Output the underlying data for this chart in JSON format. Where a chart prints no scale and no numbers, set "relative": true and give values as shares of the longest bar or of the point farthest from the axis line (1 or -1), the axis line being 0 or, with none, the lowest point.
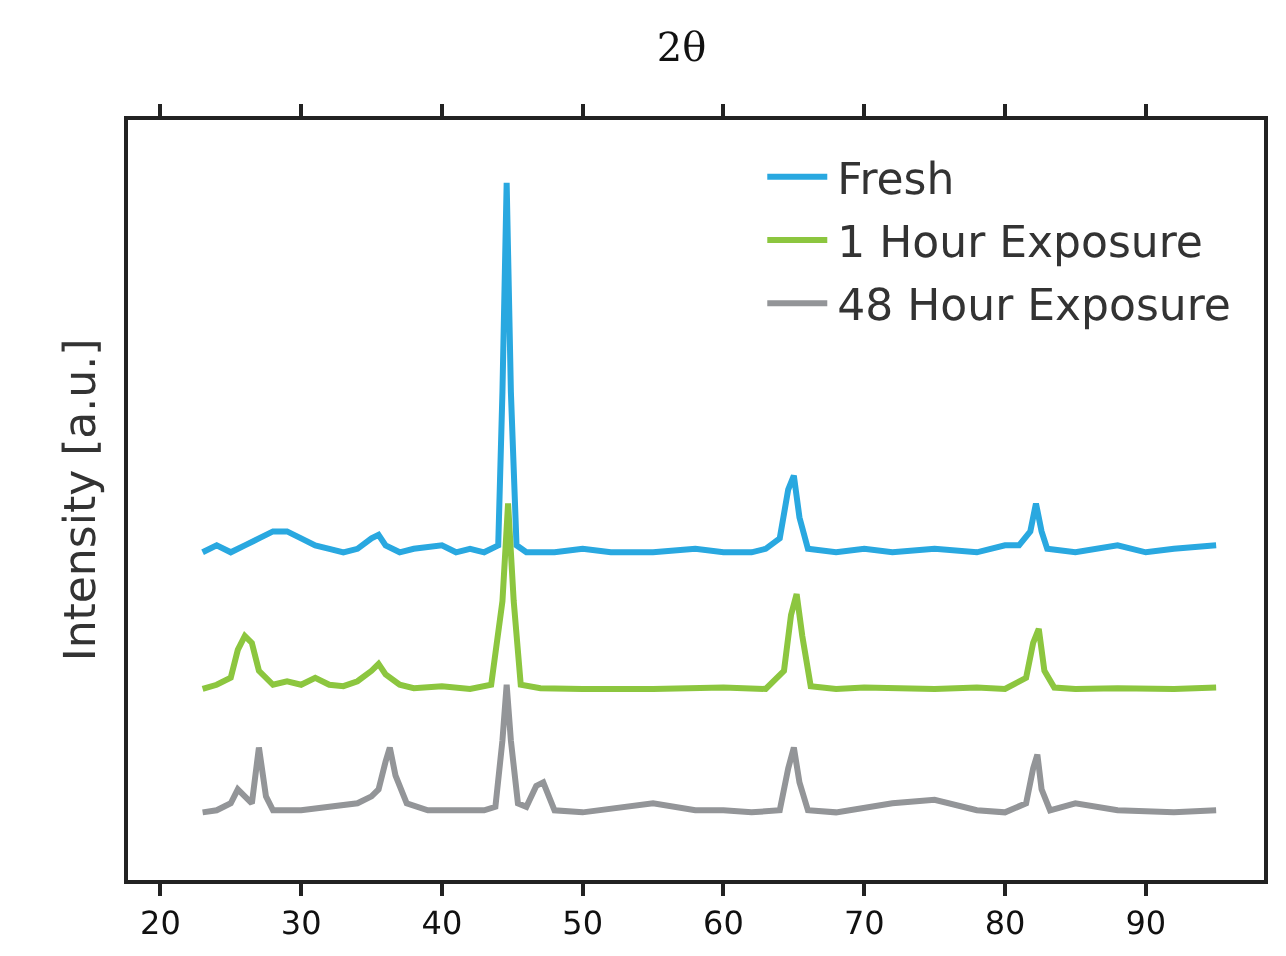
{
  "chart_data": {
    "type": "line",
    "title": "2θ",
    "ylabel": "Intensity [a.u.]",
    "relative": true,
    "xlim": [
      17.7,
      98.4
    ],
    "xticks": [
      20,
      30,
      40,
      50,
      60,
      70,
      80,
      90
    ],
    "grid": false,
    "legend": "top right",
    "marker": "none",
    "line_style": "solid",
    "series": [
      {
        "name": "Fresh",
        "color": "#29a8e0",
        "x": [
          23,
          24,
          25,
          26,
          27,
          28,
          29,
          30,
          31,
          32,
          33,
          34,
          35,
          35.5,
          36,
          37,
          38,
          40,
          41,
          42,
          43,
          44,
          44.3,
          44.6,
          44.9,
          45.3,
          46,
          48,
          50,
          52,
          55,
          58,
          60,
          62,
          63,
          64,
          64.6,
          65,
          65.4,
          66,
          68,
          70,
          72,
          75,
          78,
          80,
          81,
          81.8,
          82.2,
          82.6,
          83,
          85,
          88,
          90,
          92,
          95
        ],
        "values": [
          0.47,
          0.48,
          0.47,
          0.48,
          0.49,
          0.5,
          0.5,
          0.49,
          0.48,
          0.475,
          0.47,
          0.475,
          0.49,
          0.495,
          0.48,
          0.47,
          0.475,
          0.48,
          0.47,
          0.475,
          0.47,
          0.48,
          0.7,
          1,
          0.7,
          0.48,
          0.47,
          0.47,
          0.475,
          0.47,
          0.47,
          0.475,
          0.47,
          0.47,
          0.475,
          0.49,
          0.56,
          0.58,
          0.52,
          0.475,
          0.47,
          0.475,
          0.47,
          0.475,
          0.47,
          0.48,
          0.48,
          0.5,
          0.54,
          0.5,
          0.475,
          0.47,
          0.48,
          0.47,
          0.475,
          0.48
        ]
      },
      {
        "name": "1 Hour Exposure",
        "color": "#8cc63f",
        "x": [
          23,
          24,
          25,
          25.5,
          26,
          26.5,
          27,
          28,
          29,
          30,
          31,
          32,
          33,
          34,
          35,
          35.5,
          36,
          37,
          38,
          40,
          42,
          43.5,
          44.3,
          44.7,
          45.1,
          45.6,
          47,
          50,
          55,
          60,
          63,
          64.3,
          64.8,
          65.2,
          65.6,
          66.2,
          68,
          70,
          75,
          78,
          80,
          81.5,
          82,
          82.4,
          82.8,
          83.5,
          85,
          88,
          92,
          95
        ],
        "values": [
          0.274,
          0.28,
          0.29,
          0.33,
          0.35,
          0.34,
          0.3,
          0.28,
          0.285,
          0.28,
          0.29,
          0.28,
          0.278,
          0.285,
          0.3,
          0.31,
          0.295,
          0.28,
          0.275,
          0.278,
          0.274,
          0.28,
          0.4,
          0.54,
          0.4,
          0.28,
          0.275,
          0.274,
          0.274,
          0.276,
          0.274,
          0.3,
          0.38,
          0.41,
          0.35,
          0.278,
          0.274,
          0.276,
          0.274,
          0.276,
          0.274,
          0.29,
          0.34,
          0.36,
          0.3,
          0.276,
          0.274,
          0.275,
          0.274,
          0.276
        ]
      },
      {
        "name": "48 Hour Exposure",
        "color": "#939598",
        "x": [
          23,
          24,
          25,
          25.5,
          26,
          26.5,
          27,
          27.5,
          28,
          30,
          32,
          34,
          35,
          35.5,
          36,
          36.3,
          36.7,
          37.5,
          39,
          41,
          43,
          43.8,
          44.3,
          44.6,
          44.9,
          45.4,
          46,
          46.7,
          47.2,
          48,
          50,
          55,
          58,
          60,
          62,
          64,
          64.6,
          65,
          65.4,
          66,
          68,
          72,
          75,
          78,
          80,
          81.5,
          82,
          82.3,
          82.6,
          83.2,
          85,
          88,
          92,
          95
        ],
        "values": [
          0.097,
          0.1,
          0.11,
          0.13,
          0.12,
          0.11,
          0.19,
          0.12,
          0.1,
          0.1,
          0.105,
          0.11,
          0.12,
          0.13,
          0.17,
          0.19,
          0.15,
          0.11,
          0.1,
          0.1,
          0.1,
          0.105,
          0.2,
          0.28,
          0.2,
          0.11,
          0.105,
          0.135,
          0.14,
          0.1,
          0.097,
          0.11,
          0.1,
          0.1,
          0.097,
          0.1,
          0.16,
          0.19,
          0.14,
          0.1,
          0.097,
          0.11,
          0.115,
          0.1,
          0.097,
          0.11,
          0.16,
          0.18,
          0.13,
          0.1,
          0.11,
          0.1,
          0.097,
          0.1
        ]
      }
    ]
  }
}
